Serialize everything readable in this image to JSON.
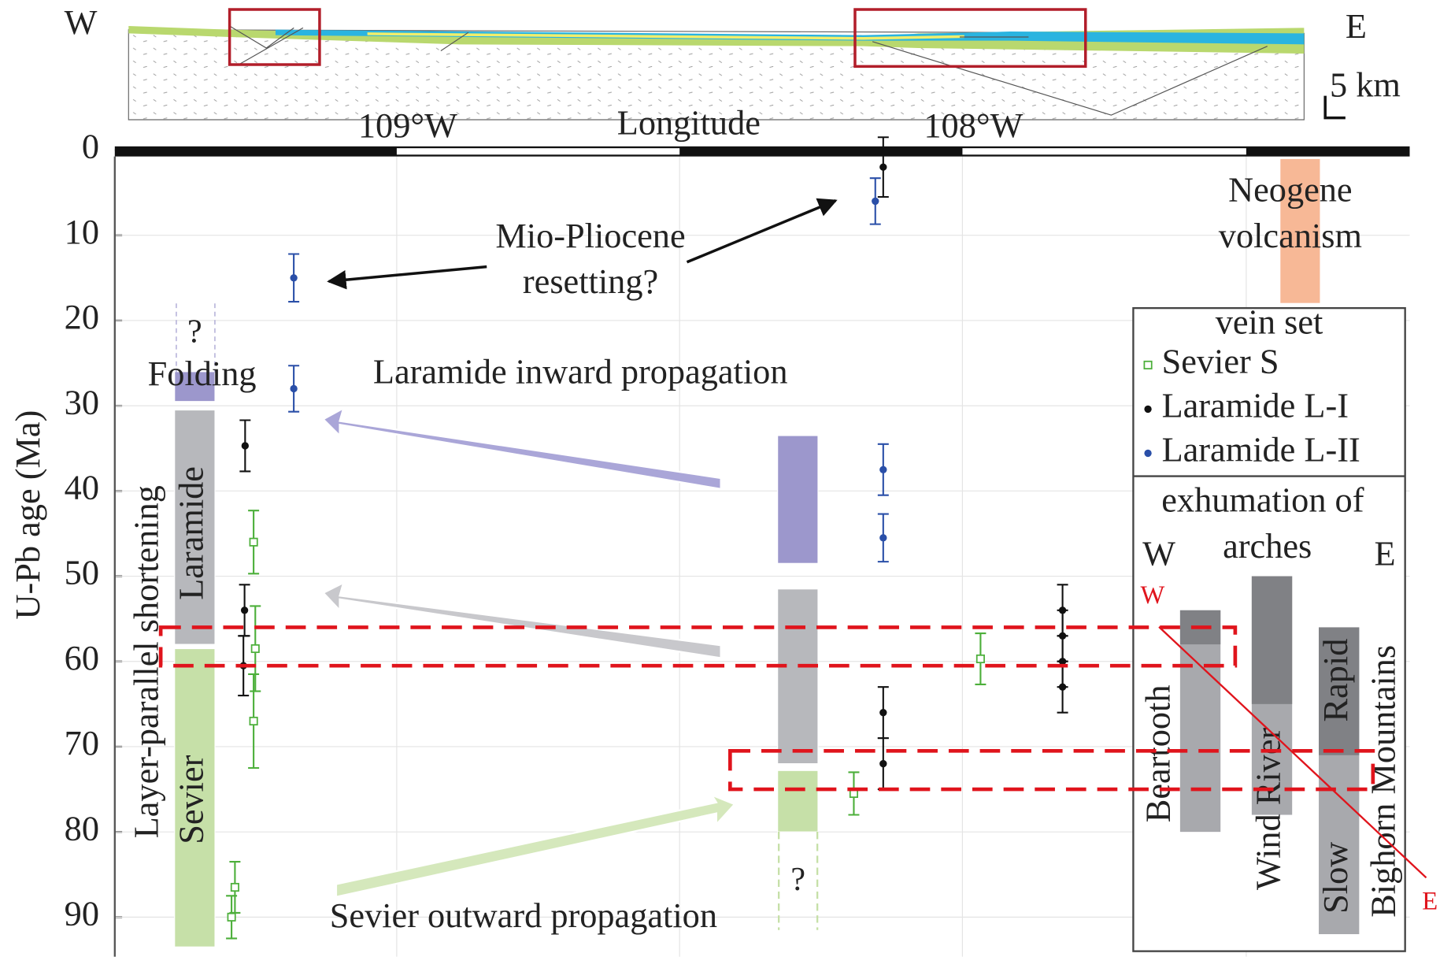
{
  "chart_data": {
    "type": "errorbar",
    "xlabel": "Longitude",
    "ylabel": "U-Pb age (Ma)",
    "xlim": [
      -109.5,
      -107.21
    ],
    "xticks": [
      {
        "value": -109,
        "label": "109°W"
      },
      {
        "value": -108,
        "label": "108°W"
      }
    ],
    "ylim": [
      0,
      94
    ],
    "yticks": [
      0,
      10,
      20,
      30,
      40,
      50,
      60,
      70,
      80,
      90
    ],
    "grid": true,
    "legend_title": "vein set",
    "series": [
      {
        "name": "Sevier S",
        "color": "#4caf3a",
        "marker": "square",
        "x": [
          -109.253,
          -109.25,
          -109.253,
          -109.286,
          -109.292,
          -108.192,
          -107.968
        ],
        "values": [
          46,
          58.5,
          67,
          86.5,
          90,
          75.5,
          59.7
        ],
        "errors": [
          3.7,
          5,
          5.5,
          3,
          2.5,
          2.5,
          3
        ]
      },
      {
        "name": "Laramide L-I",
        "color": "#111111",
        "marker": "circle",
        "x": [
          -109.268,
          -109.269,
          -109.271,
          -108.14,
          -108.14,
          -108.14,
          -107.823,
          -107.823,
          -107.823,
          -107.823
        ],
        "values": [
          34.7,
          54,
          60.5,
          2,
          66,
          72,
          54,
          57,
          60,
          63
        ],
        "errors": [
          3,
          3,
          3.5,
          3.5,
          3,
          3,
          3,
          3,
          3,
          3
        ]
      },
      {
        "name": "Laramide L-II",
        "color": "#2a4fa8",
        "marker": "circle",
        "x": [
          -109.182,
          -109.182,
          -108.154,
          -108.14,
          -108.14
        ],
        "values": [
          15,
          28,
          6,
          37.5,
          45.5
        ],
        "errors": [
          2.8,
          2.7,
          2.7,
          3,
          2.8
        ]
      }
    ],
    "ranges": [
      {
        "x": -109.357,
        "y": [
          26,
          29.5
        ],
        "color": "#9c97cc"
      },
      {
        "x": -109.357,
        "y": [
          30.5,
          58
        ],
        "color": "#b7b8bc"
      },
      {
        "x": -109.357,
        "y": [
          58.5,
          93.5
        ],
        "color": "#c6e0a8"
      },
      {
        "x": -108.291,
        "y": [
          33.5,
          48.5
        ],
        "color": "#9c97cc"
      },
      {
        "x": -108.291,
        "y": [
          51.5,
          72
        ],
        "color": "#b7b8bc"
      },
      {
        "x": -108.291,
        "y": [
          72.8,
          80
        ],
        "color": "#c6e0a8"
      },
      {
        "x": -107.403,
        "y": [
          1,
          18
        ],
        "color": "#f7b896"
      }
    ],
    "arches": [
      {
        "y": [
          54,
          80
        ],
        "dark": [
          54,
          58
        ]
      },
      {
        "y": [
          50,
          78
        ],
        "dark": [
          50,
          65
        ]
      },
      {
        "y": [
          56,
          92
        ],
        "dark": [
          56,
          71
        ]
      }
    ],
    "highlights": [
      [
        56,
        60.5
      ],
      [
        70.5,
        75
      ]
    ],
    "labels": {
      "mio": [
        "Mio-Pliocene",
        "resetting?"
      ],
      "inward": "Laramide inward propagation",
      "outward": "Sevier outward propagation",
      "neogene": [
        "Neogene",
        "volcanism"
      ],
      "folding": "Folding",
      "question": "?",
      "laramide": "Laramide",
      "sevier": "Sevier",
      "lps": "Layer-parallel shortening",
      "exhumation": [
        "exhumation of",
        "arches"
      ],
      "w": "W",
      "e": "E",
      "beartooth": "Beartooth",
      "windriver": "Wind River",
      "rapid": "Rapid",
      "slow": "Slow",
      "bighorn": "Bighorn Mountains",
      "section_w": "W",
      "section_e": "E",
      "scale": "5 km"
    }
  }
}
